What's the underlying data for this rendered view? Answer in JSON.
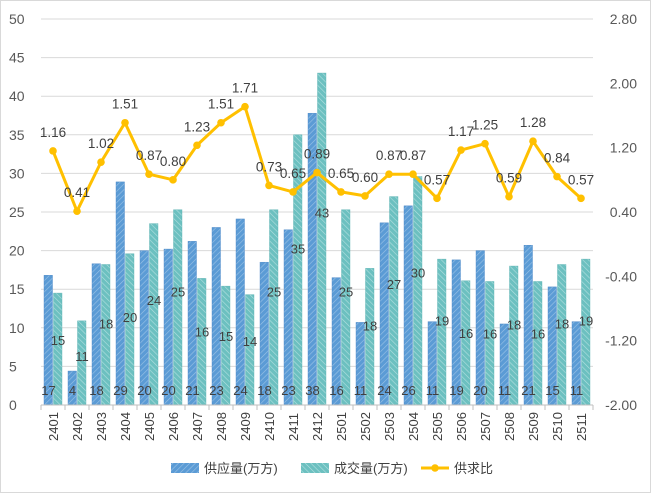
{
  "chart_data": {
    "type": "bar",
    "title": "",
    "categories": [
      "2401",
      "2402",
      "2403",
      "2404",
      "2405",
      "2406",
      "2407",
      "2408",
      "2409",
      "2410",
      "2411",
      "2412",
      "2501",
      "2502",
      "2503",
      "2504",
      "2505",
      "2506",
      "2507",
      "2508",
      "2509",
      "2510",
      "2511"
    ],
    "series": [
      {
        "name": "供应量(万方)",
        "kind": "bar",
        "axis": "left",
        "color": "#5b9bd5",
        "values": [
          16.8,
          4.4,
          18.3,
          28.9,
          20.0,
          20.2,
          21.2,
          23.0,
          24.1,
          18.5,
          22.7,
          37.8,
          16.5,
          10.7,
          23.6,
          25.8,
          10.8,
          18.8,
          20.0,
          10.5,
          20.7,
          15.3,
          10.8
        ],
        "labels": [
          "17",
          "4",
          "18",
          "29",
          "20",
          "20",
          "21",
          "23",
          "24",
          "18",
          "23",
          "38",
          "16",
          "11",
          "24",
          "26",
          "11",
          "19",
          "20",
          "11",
          "21",
          "15",
          "11"
        ]
      },
      {
        "name": "成交量(万方)",
        "kind": "bar",
        "axis": "left",
        "color": "#70c3c3",
        "values": [
          14.5,
          10.9,
          18.2,
          19.6,
          23.5,
          25.3,
          16.4,
          15.4,
          14.3,
          25.3,
          35.0,
          43.0,
          25.3,
          17.7,
          27.0,
          29.6,
          18.9,
          16.1,
          16.0,
          18.0,
          16.0,
          18.2,
          18.9
        ],
        "labels": [
          "15",
          "11",
          "18",
          "20",
          "24",
          "25",
          "16",
          "15",
          "14",
          "25",
          "35",
          "43",
          "25",
          "18",
          "27",
          "30",
          "19",
          "16",
          "16",
          "18",
          "16",
          "18",
          "19"
        ]
      },
      {
        "name": "供求比",
        "kind": "line",
        "axis": "right",
        "color": "#ffc000",
        "values": [
          1.16,
          0.41,
          1.02,
          1.51,
          0.87,
          0.8,
          1.23,
          1.51,
          1.71,
          0.73,
          0.65,
          0.89,
          0.65,
          0.6,
          0.87,
          0.87,
          0.57,
          1.17,
          1.25,
          0.59,
          1.28,
          0.84,
          0.57
        ],
        "labels": [
          "1.16",
          "0.41",
          "1.02",
          "1.51",
          "0.87",
          "0.80",
          "1.23",
          "1.51",
          "1.71",
          "0.73",
          "0.65",
          "0.89",
          "0.65",
          "0.60",
          "0.87",
          "0.87",
          "0.57",
          "1.17",
          "1.25",
          "0.59",
          "1.28",
          "0.84",
          "0.57"
        ]
      }
    ],
    "y_left": {
      "min": 0,
      "max": 50,
      "ticks": [
        "0",
        "5",
        "10",
        "15",
        "20",
        "25",
        "30",
        "35",
        "40",
        "45",
        "50"
      ]
    },
    "y_right": {
      "min": -2.0,
      "max": 2.8,
      "ticks": [
        "-2.00",
        "-1.20",
        "-0.40",
        "0.40",
        "1.20",
        "2.00",
        "2.80"
      ]
    },
    "grid": true,
    "legend_position": "bottom"
  }
}
